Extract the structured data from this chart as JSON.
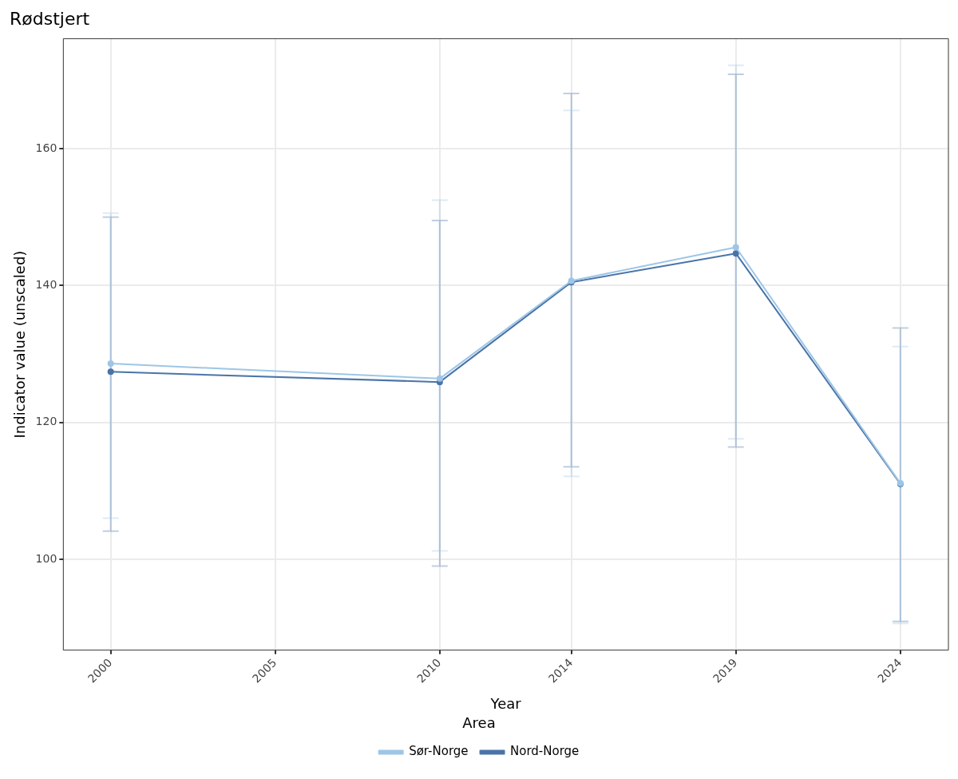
{
  "chart_data": {
    "type": "line",
    "title": "Rødstjert",
    "xlabel": "Year",
    "ylabel": "Indicator value (unscaled)",
    "legend_title": "Area",
    "x": [
      2000,
      2010,
      2014,
      2019,
      2024
    ],
    "series": [
      {
        "name": "Nord-Norge",
        "color": "#4a74a8",
        "values": [
          127.4,
          125.9,
          140.5,
          144.7,
          111.0
        ],
        "errors": [
          [
            104.1,
            150.0
          ],
          [
            99.0,
            149.5
          ],
          [
            113.5,
            168.1
          ],
          [
            116.4,
            170.9
          ],
          [
            90.9,
            133.8
          ]
        ]
      },
      {
        "name": "Sør-Norge",
        "color": "#9dc6e6",
        "values": [
          128.6,
          126.4,
          140.7,
          145.6,
          111.1
        ],
        "errors": [
          [
            106.0,
            150.6
          ],
          [
            101.2,
            152.5
          ],
          [
            112.1,
            165.6
          ],
          [
            117.6,
            172.2
          ],
          [
            90.6,
            131.1
          ]
        ]
      }
    ],
    "xlim": [
      1998.56,
      2025.46
    ],
    "xticks": [
      2000,
      2005,
      2010,
      2014,
      2019,
      2024
    ],
    "ylim": [
      86.7,
      176.1
    ],
    "yticks": [
      100,
      120,
      140,
      160
    ],
    "grid": true,
    "legend": "bottom",
    "marker": "circle",
    "line_style": "solid"
  }
}
